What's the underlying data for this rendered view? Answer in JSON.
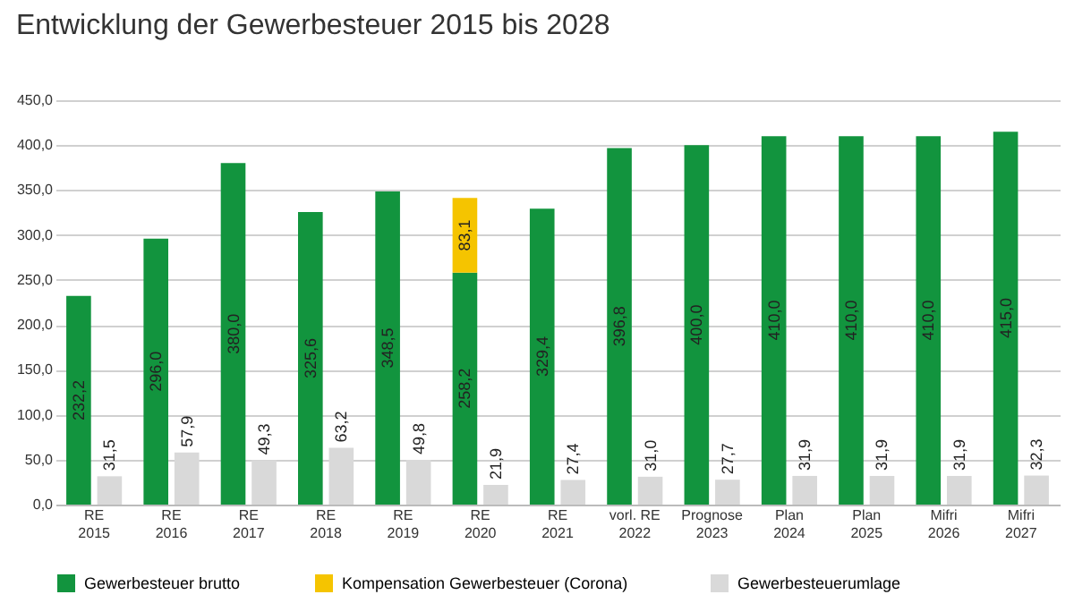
{
  "chart_data": {
    "type": "bar",
    "title": "Entwicklung der Gewerbesteuer 2015 bis 2028",
    "categories": [
      "RE 2015",
      "RE 2016",
      "RE 2017",
      "RE 2018",
      "RE 2019",
      "RE 2020",
      "RE 2021",
      "vorl. RE 2022",
      "Prognose 2023",
      "Plan 2024",
      "Plan 2025",
      "Mifri 2026",
      "Mifri 2027"
    ],
    "series": [
      {
        "name": "Gewerbesteuer brutto",
        "color": "#12943e",
        "values": [
          232.2,
          296.0,
          380.0,
          325.6,
          348.5,
          258.2,
          329.4,
          396.8,
          400.0,
          410.0,
          410.0,
          410.0,
          415.0
        ],
        "value_labels": [
          "232,2",
          "296,0",
          "380,0",
          "325,6",
          "348,5",
          "258,2",
          "329,4",
          "396,8",
          "400,0",
          "410,0",
          "410,0",
          "410,0",
          "415,0"
        ]
      },
      {
        "name": "Kompensation  Gewerbesteuer  (Corona)",
        "color": "#f5c400",
        "base": [
          null,
          null,
          null,
          null,
          null,
          258.2,
          null,
          null,
          null,
          null,
          null,
          null,
          null
        ],
        "values": [
          null,
          null,
          null,
          null,
          null,
          83.1,
          null,
          null,
          null,
          null,
          null,
          null,
          null
        ],
        "value_labels": [
          null,
          null,
          null,
          null,
          null,
          "83,1",
          null,
          null,
          null,
          null,
          null,
          null,
          null
        ]
      },
      {
        "name": "Gewerbesteuerumlage",
        "color": "#d9d9d9",
        "values": [
          31.5,
          57.9,
          49.3,
          63.2,
          49.8,
          21.9,
          27.4,
          31.0,
          27.7,
          31.9,
          31.9,
          31.9,
          32.3
        ],
        "value_labels": [
          "31,5",
          "57,9",
          "49,3",
          "63,2",
          "49,8",
          "21,9",
          "27,4",
          "31,0",
          "27,7",
          "31,9",
          "31,9",
          "31,9",
          "32,3"
        ]
      }
    ],
    "ylim": [
      0,
      450
    ],
    "yticks": [
      {
        "value": 0,
        "label": "0,0"
      },
      {
        "value": 50,
        "label": "50,0"
      },
      {
        "value": 100,
        "label": "100,0"
      },
      {
        "value": 150,
        "label": "150,0"
      },
      {
        "value": 200,
        "label": "200,0"
      },
      {
        "value": 250,
        "label": "250,0"
      },
      {
        "value": 300,
        "label": "300,0"
      },
      {
        "value": 350,
        "label": "350,0"
      },
      {
        "value": 400,
        "label": "400,0"
      },
      {
        "value": 450,
        "label": "450,0"
      }
    ],
    "grid": "y",
    "legend": "bottom"
  }
}
